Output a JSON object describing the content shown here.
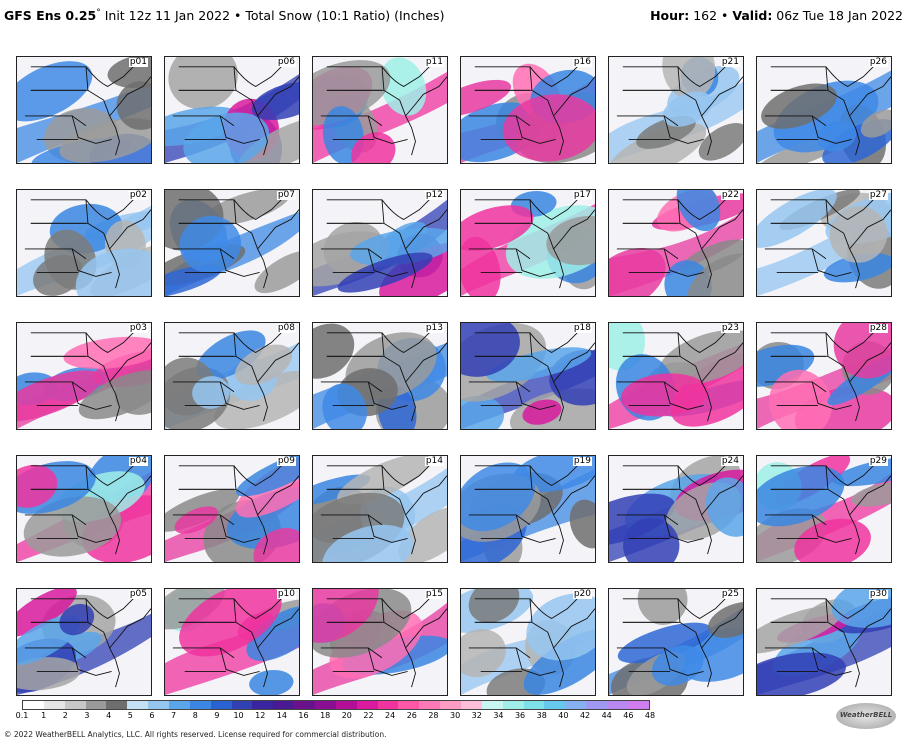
{
  "header": {
    "model": "GFS Ens 0.25",
    "degree": "°",
    "init": " Init 12z 11 Jan 2022 • Total Snow (10:1 Ratio) (Inches)",
    "hour_label": "Hour:",
    "hour_value": " 162 • ",
    "valid_label": "Valid:",
    "valid_value": " 06z Tue 18 Jan 2022"
  },
  "panels": [
    "p01",
    "p06",
    "p11",
    "p16",
    "p21",
    "p26",
    "p02",
    "p07",
    "p12",
    "p17",
    "p22",
    "p27",
    "p03",
    "p08",
    "p13",
    "p18",
    "p23",
    "p28",
    "p04",
    "p09",
    "p14",
    "p19",
    "p24",
    "p29",
    "p05",
    "p10",
    "p15",
    "p20",
    "p25",
    "p30"
  ],
  "colorbar": {
    "labels": [
      "0.1",
      "1",
      "2",
      "3",
      "4",
      "5",
      "6",
      "7",
      "8",
      "9",
      "10",
      "12",
      "14",
      "16",
      "18",
      "20",
      "22",
      "24",
      "26",
      "28",
      "30",
      "32",
      "34",
      "36",
      "38",
      "40",
      "42",
      "44",
      "46",
      "48"
    ],
    "colors": [
      "#ffffff",
      "#e6e6e6",
      "#c8c8c8",
      "#9a9a9a",
      "#6e6e6e",
      "#c4e0f5",
      "#95c6f0",
      "#5ba6ea",
      "#3a86e2",
      "#2a62d2",
      "#3240b5",
      "#3a24a0",
      "#4a1a92",
      "#6a128e",
      "#8a0e92",
      "#b40e98",
      "#d81a9e",
      "#f0339f",
      "#ff56a8",
      "#ff79b6",
      "#ff9cc6",
      "#ffbfd8",
      "#c8f5f2",
      "#9feee8",
      "#7de0ea",
      "#66c8ec",
      "#86b0f0",
      "#9f98f0",
      "#b888f0",
      "#cf7cf0"
    ]
  },
  "footer": {
    "copyright": "© 2022 WeatherBELL Analytics, LLC. All rights reserved. License required for commercial distribution.",
    "logo": "WeatherBELL"
  }
}
